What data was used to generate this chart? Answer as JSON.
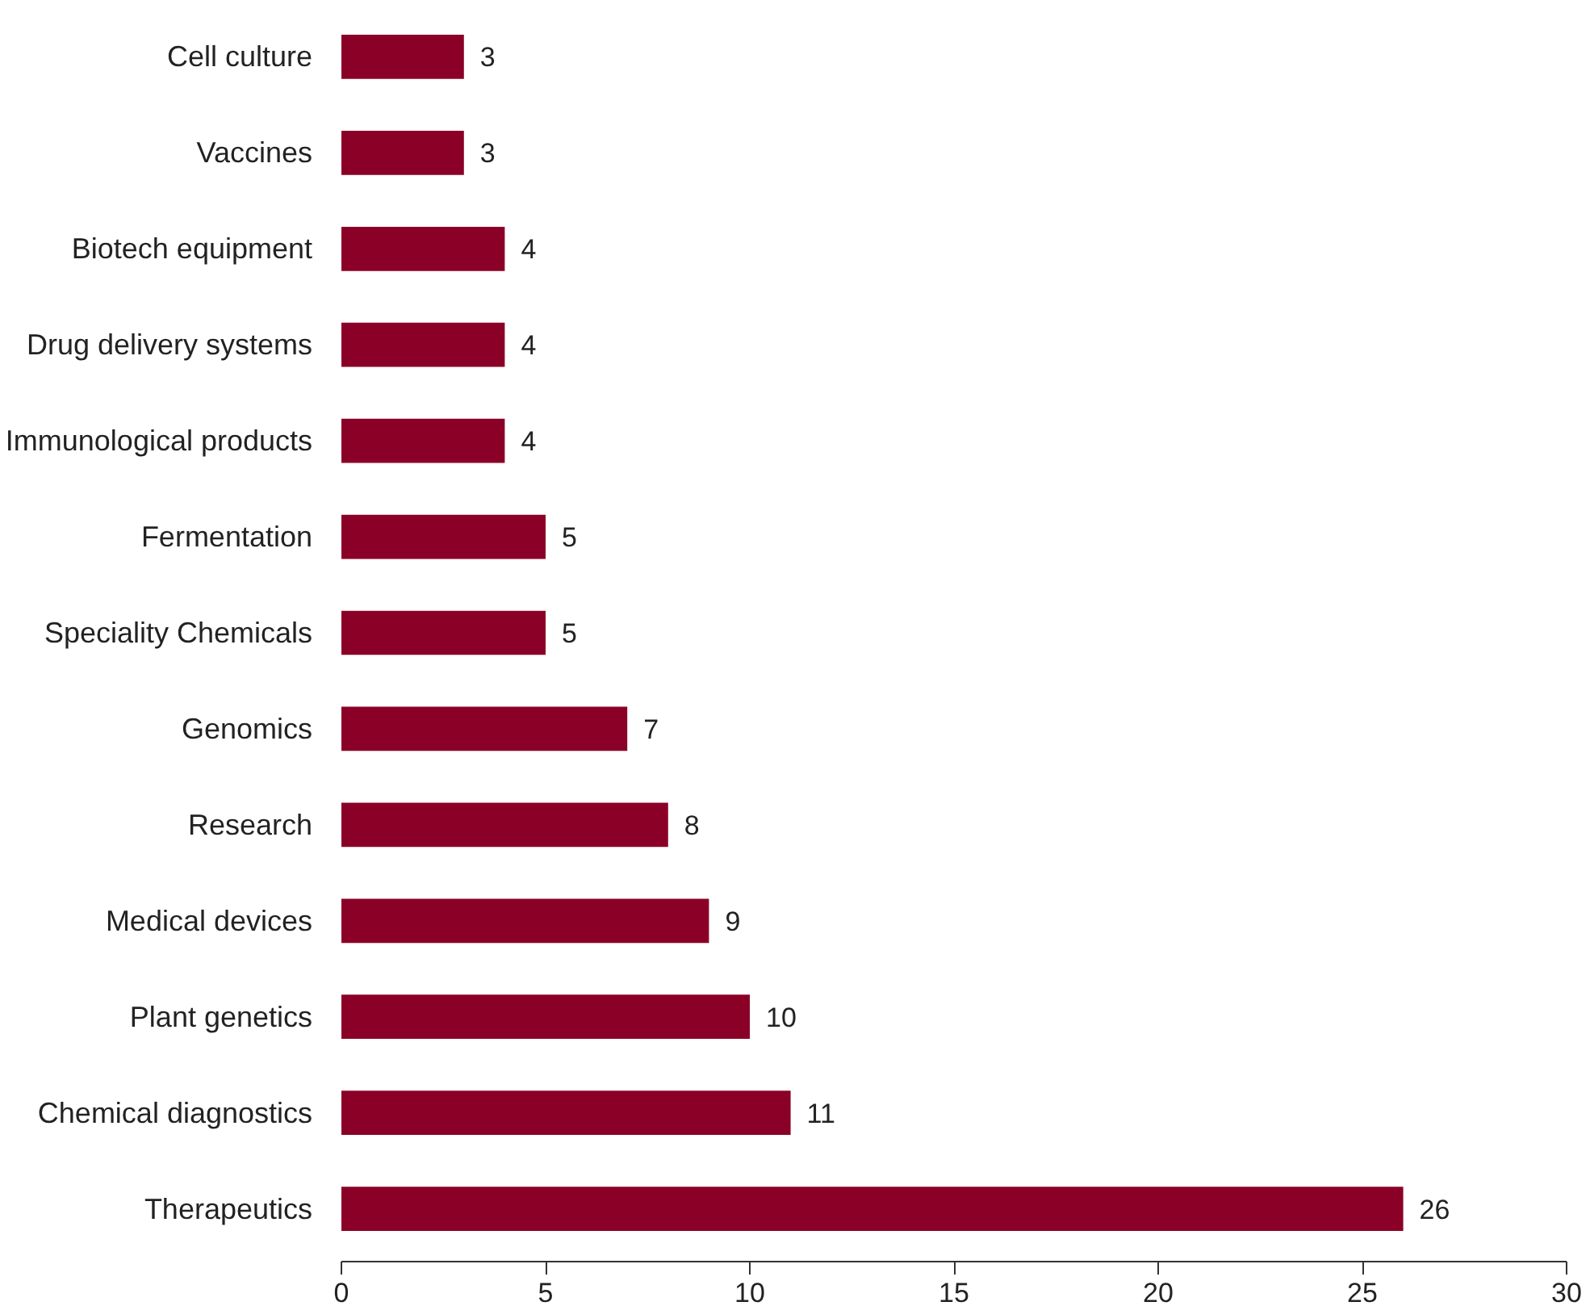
{
  "chart_data": {
    "type": "bar",
    "orientation": "horizontal",
    "categories": [
      "Cell culture",
      "Vaccines",
      "Biotech equipment",
      "Drug delivery systems",
      "Immunological products",
      "Fermentation",
      "Speciality Chemicals",
      "Genomics",
      "Research",
      "Medical devices",
      "Plant genetics",
      "Chemical diagnostics",
      "Therapeutics"
    ],
    "values": [
      3,
      3,
      4,
      4,
      4,
      5,
      5,
      7,
      8,
      9,
      10,
      11,
      26
    ],
    "color": "#8b0027",
    "xlim": [
      0,
      30
    ],
    "xticks": [
      0,
      5,
      10,
      15,
      20,
      25,
      30
    ],
    "data_labels": true,
    "grid": false
  }
}
